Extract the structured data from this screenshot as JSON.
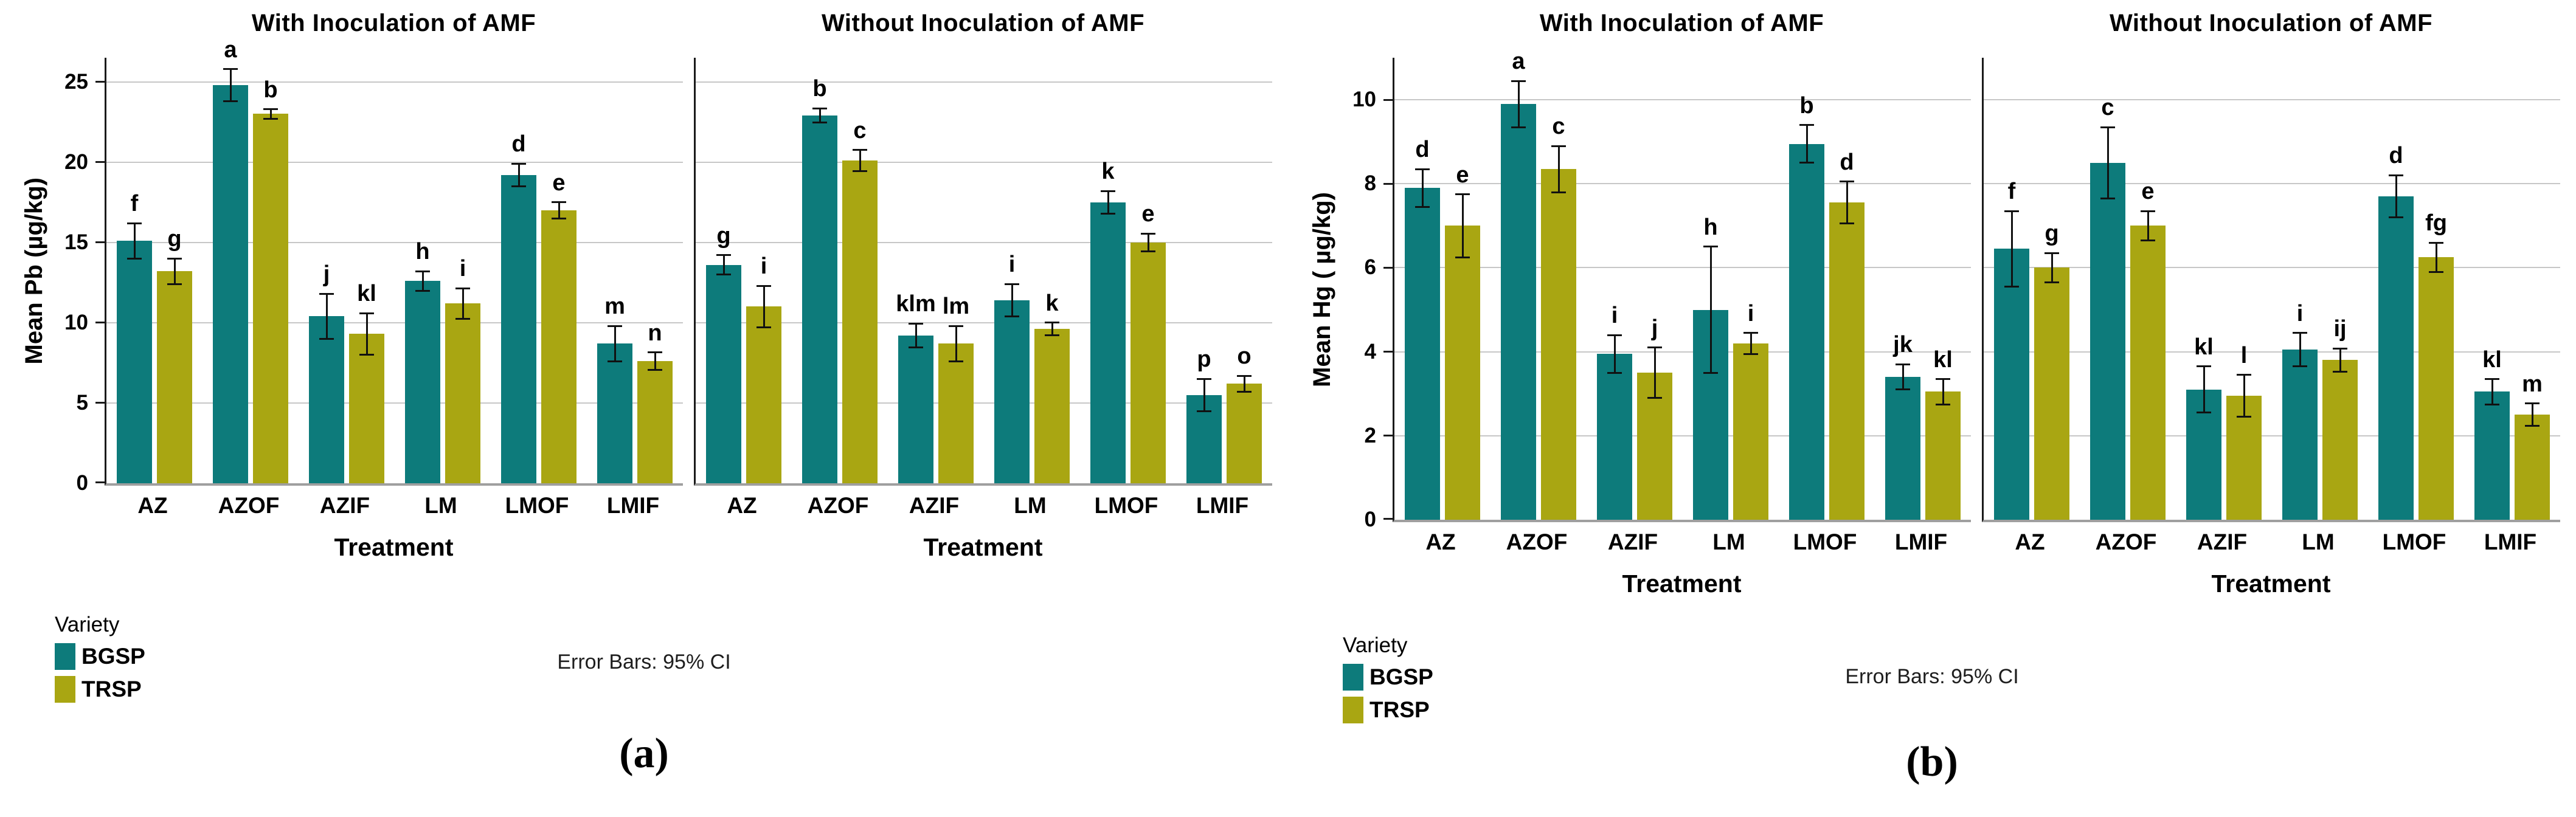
{
  "figure": {
    "panels": [
      {
        "id": "a",
        "caption": "(a)",
        "note": "Error Bars: 95% CI",
        "legend": {
          "title": "Variety",
          "entries": [
            {
              "label": "BGSP",
              "color": "#0d7b7b"
            },
            {
              "label": "TRSP",
              "color": "#a9a612"
            }
          ]
        }
      },
      {
        "id": "b",
        "caption": "(b)",
        "note": "Error Bars: 95% CI",
        "legend": {
          "title": "Variety",
          "entries": [
            {
              "label": "BGSP",
              "color": "#0d7b7b"
            },
            {
              "label": "TRSP",
              "color": "#a9a612"
            }
          ]
        }
      }
    ],
    "style_colors": {
      "gridline": "#c7c7c7",
      "baseline": "#9f9f9f",
      "spine": "#1a1a1a",
      "error_bar": "#111111"
    }
  },
  "chart_data": [
    {
      "type": "bar",
      "panel": "a",
      "title": "With Inoculation of AMF",
      "ylabel": "Mean Pb (µg/kg)",
      "xlabel": "Treatment",
      "ylim": [
        0,
        26.5
      ],
      "yticks": [
        0,
        5,
        10,
        15,
        20,
        25
      ],
      "show_tick_labels": true,
      "grid": true,
      "legend_position": "bottom-left",
      "categories": [
        "AZ",
        "AZOF",
        "AZIF",
        "LM",
        "LMOF",
        "LMIF"
      ],
      "series": [
        {
          "name": "BGSP",
          "color": "#0d7b7b",
          "values": [
            15.1,
            24.8,
            10.4,
            12.6,
            19.2,
            8.7
          ],
          "errors": [
            1.1,
            1.0,
            1.4,
            0.6,
            0.7,
            1.1
          ],
          "letters": [
            "f",
            "a",
            "j",
            "h",
            "d",
            "m"
          ]
        },
        {
          "name": "TRSP",
          "color": "#a9a612",
          "values": [
            13.2,
            23.0,
            9.3,
            11.2,
            17.0,
            7.6
          ],
          "errors": [
            0.8,
            0.3,
            1.3,
            0.95,
            0.5,
            0.55
          ],
          "letters": [
            "g",
            "b",
            "kl",
            "i",
            "e",
            "n"
          ]
        }
      ]
    },
    {
      "type": "bar",
      "panel": "a",
      "title": "Without Inoculation of AMF",
      "ylabel": "Mean Pb (µg/kg)",
      "xlabel": "Treatment",
      "ylim": [
        0,
        26.5
      ],
      "yticks": [
        0,
        5,
        10,
        15,
        20,
        25
      ],
      "show_tick_labels": false,
      "grid": true,
      "categories": [
        "AZ",
        "AZOF",
        "AZIF",
        "LM",
        "LMOF",
        "LMIF"
      ],
      "series": [
        {
          "name": "BGSP",
          "color": "#0d7b7b",
          "values": [
            13.6,
            22.9,
            9.2,
            11.4,
            17.5,
            5.5
          ],
          "errors": [
            0.6,
            0.45,
            0.75,
            1.0,
            0.7,
            1.0
          ],
          "letters": [
            "g",
            "b",
            "klm",
            "i",
            "k",
            "p"
          ]
        },
        {
          "name": "TRSP",
          "color": "#a9a612",
          "values": [
            11.0,
            20.1,
            8.7,
            9.6,
            15.0,
            6.2
          ],
          "errors": [
            1.3,
            0.65,
            1.1,
            0.4,
            0.55,
            0.5
          ],
          "letters": [
            "i",
            "c",
            "lm",
            "k",
            "e",
            "o"
          ]
        }
      ]
    },
    {
      "type": "bar",
      "panel": "b",
      "title": "With Inoculation of AMF",
      "ylabel": "Mean Hg ( µg/kg)",
      "xlabel": "Treatment",
      "ylim": [
        0,
        11
      ],
      "yticks": [
        0,
        2,
        4,
        6,
        8,
        10
      ],
      "show_tick_labels": true,
      "grid": true,
      "legend_position": "bottom-left",
      "categories": [
        "AZ",
        "AZOF",
        "AZIF",
        "LM",
        "LMOF",
        "LMIF"
      ],
      "series": [
        {
          "name": "BGSP",
          "color": "#0d7b7b",
          "values": [
            7.9,
            9.9,
            3.95,
            5.0,
            8.95,
            3.4
          ],
          "errors": [
            0.45,
            0.55,
            0.45,
            1.5,
            0.45,
            0.3
          ],
          "letters": [
            "d",
            "a",
            "i",
            "h",
            "b",
            "jk"
          ]
        },
        {
          "name": "TRSP",
          "color": "#a9a612",
          "values": [
            7.0,
            8.35,
            3.5,
            4.2,
            7.55,
            3.05
          ],
          "errors": [
            0.75,
            0.55,
            0.6,
            0.25,
            0.5,
            0.3
          ],
          "letters": [
            "e",
            "c",
            "j",
            "i",
            "d",
            "kl"
          ]
        }
      ]
    },
    {
      "type": "bar",
      "panel": "b",
      "title": "Without Inoculation of AMF",
      "ylabel": "Mean Hg ( µg/kg)",
      "xlabel": "Treatment",
      "ylim": [
        0,
        11
      ],
      "yticks": [
        0,
        2,
        4,
        6,
        8,
        10
      ],
      "show_tick_labels": false,
      "grid": true,
      "categories": [
        "AZ",
        "AZOF",
        "AZIF",
        "LM",
        "LMOF",
        "LMIF"
      ],
      "series": [
        {
          "name": "BGSP",
          "color": "#0d7b7b",
          "values": [
            6.45,
            8.5,
            3.1,
            4.05,
            7.7,
            3.05
          ],
          "errors": [
            0.9,
            0.85,
            0.55,
            0.4,
            0.5,
            0.3
          ],
          "letters": [
            "f",
            "c",
            "kl",
            "i",
            "d",
            "kl"
          ]
        },
        {
          "name": "TRSP",
          "color": "#a9a612",
          "values": [
            6.0,
            7.0,
            2.95,
            3.8,
            6.25,
            2.5
          ],
          "errors": [
            0.35,
            0.35,
            0.5,
            0.28,
            0.35,
            0.27
          ],
          "letters": [
            "g",
            "e",
            "l",
            "ij",
            "fg",
            "m"
          ]
        }
      ]
    }
  ]
}
